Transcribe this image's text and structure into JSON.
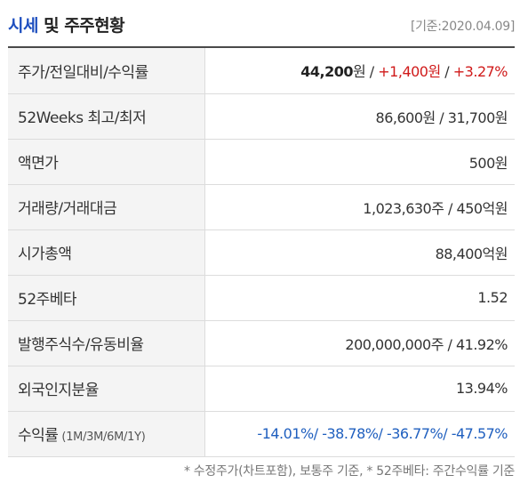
{
  "header": {
    "title_accent": "시세",
    "title_rest": "및 주주현황",
    "baseline": "[기준:2020.04.09]"
  },
  "rows": [
    {
      "label": "주가/전일대비/수익률",
      "price": "44,200",
      "won1": "원",
      "sep1": " / ",
      "change": "+1,400원",
      "sep2": " / ",
      "rate": "+3.27%"
    },
    {
      "label": "52Weeks 최고/최저",
      "value": "86,600원 / 31,700원"
    },
    {
      "label": "액면가",
      "value": "500원"
    },
    {
      "label": "거래량/거래대금",
      "value": "1,023,630주 / 450억원"
    },
    {
      "label": "시가총액",
      "value": "88,400억원"
    },
    {
      "label": "52주베타",
      "value": "1.52"
    },
    {
      "label": "발행주식수/유동비율",
      "value": "200,000,000주 / 41.92%"
    },
    {
      "label": "외국인지분율",
      "value": "13.94%"
    },
    {
      "label": "수익률",
      "sub": "(1M/3M/6M/1Y)",
      "r1": "-14.01%",
      "r2": "-38.78%",
      "r3": "-36.77%",
      "r4": "-47.57%",
      "sep": "/ "
    }
  ],
  "footnote": "* 수정주가(차트포함), 보통주 기준, * 52주베타: 주간수익률 기준",
  "colors": {
    "up": "#d01a1a",
    "down": "#1f5fbf",
    "accent": "#1e4fbf"
  }
}
